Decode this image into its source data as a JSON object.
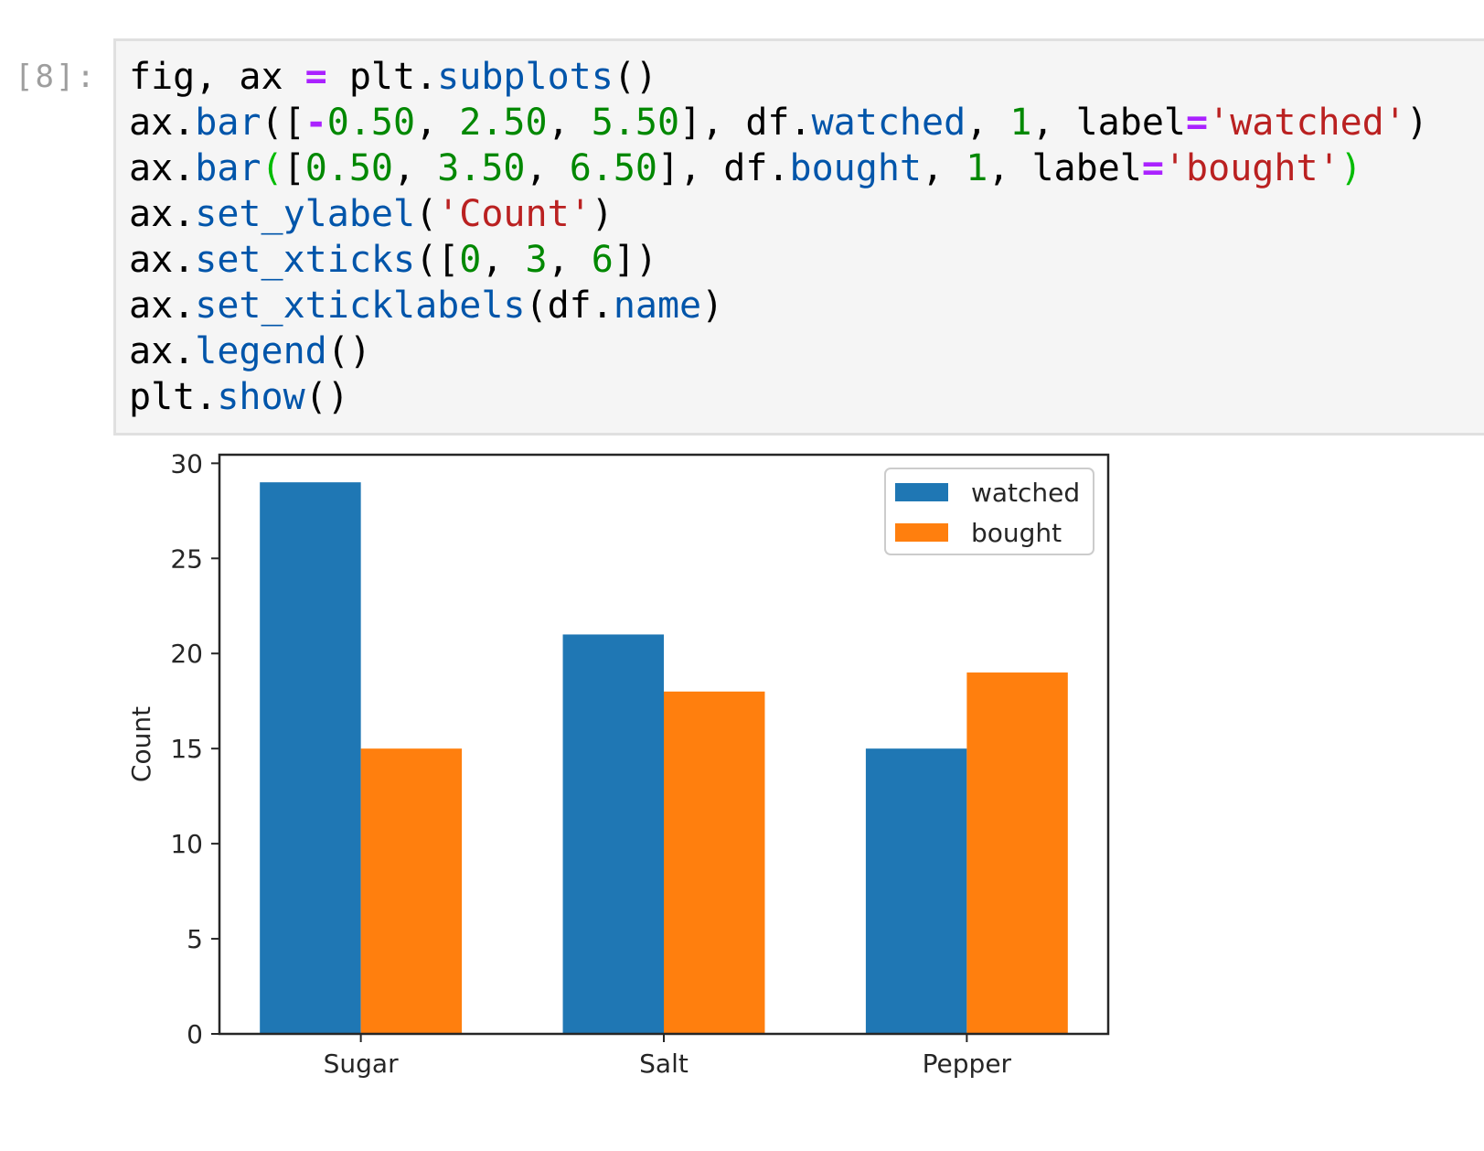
{
  "cell": {
    "prompt": "[8]:",
    "code_lines": [
      [
        [
          "fig, ax ",
          ""
        ],
        [
          "=",
          "op"
        ],
        [
          " plt.",
          ""
        ],
        [
          "subplots",
          "attr"
        ],
        [
          "()",
          ""
        ]
      ],
      [
        [
          "ax.",
          ""
        ],
        [
          "bar",
          "attr"
        ],
        [
          "([",
          ""
        ],
        [
          "-",
          "op"
        ],
        [
          "0.50",
          "num"
        ],
        [
          ", ",
          ""
        ],
        [
          "2.50",
          "num"
        ],
        [
          ", ",
          ""
        ],
        [
          "5.50",
          "num"
        ],
        [
          "], df.",
          ""
        ],
        [
          "watched",
          "attr"
        ],
        [
          ", ",
          ""
        ],
        [
          "1",
          "num"
        ],
        [
          ", label",
          ""
        ],
        [
          "=",
          "op"
        ],
        [
          "'watched'",
          "str"
        ],
        [
          ")",
          ""
        ]
      ],
      [
        [
          "ax.",
          ""
        ],
        [
          "bar",
          "attr"
        ],
        [
          "(",
          "pg"
        ],
        [
          "[",
          ""
        ],
        [
          "0.50",
          "num"
        ],
        [
          ", ",
          ""
        ],
        [
          "3.50",
          "num"
        ],
        [
          ", ",
          ""
        ],
        [
          "6.50",
          "num"
        ],
        [
          "], df.",
          ""
        ],
        [
          "bought",
          "attr"
        ],
        [
          ", ",
          ""
        ],
        [
          "1",
          "num"
        ],
        [
          ", label",
          ""
        ],
        [
          "=",
          "op"
        ],
        [
          "'bought'",
          "str"
        ],
        [
          ")",
          "pg"
        ]
      ],
      [
        [
          "ax.",
          ""
        ],
        [
          "set_ylabel",
          "attr"
        ],
        [
          "(",
          ""
        ],
        [
          "'Count'",
          "str"
        ],
        [
          ")",
          ""
        ]
      ],
      [
        [
          "ax.",
          ""
        ],
        [
          "set_xticks",
          "attr"
        ],
        [
          "([",
          ""
        ],
        [
          "0",
          "num"
        ],
        [
          ", ",
          ""
        ],
        [
          "3",
          "num"
        ],
        [
          ", ",
          ""
        ],
        [
          "6",
          "num"
        ],
        [
          "])",
          ""
        ]
      ],
      [
        [
          "ax.",
          ""
        ],
        [
          "set_xticklabels",
          "attr"
        ],
        [
          "(df.",
          ""
        ],
        [
          "name",
          "attr"
        ],
        [
          ")",
          ""
        ]
      ],
      [
        [
          "ax.",
          ""
        ],
        [
          "legend",
          "attr"
        ],
        [
          "()",
          ""
        ]
      ],
      [
        [
          "plt.",
          ""
        ],
        [
          "show",
          "attr"
        ],
        [
          "()",
          ""
        ]
      ]
    ]
  },
  "colors": {
    "watched": "#1f77b4",
    "bought": "#ff7f0e",
    "axis": "#262626"
  },
  "chart_data": {
    "type": "bar",
    "title": "",
    "xlabel": "",
    "ylabel": "Count",
    "categories": [
      "Sugar",
      "Salt",
      "Pepper"
    ],
    "xticks": [
      0,
      3,
      6
    ],
    "series": [
      {
        "name": "watched",
        "x": [
          -0.5,
          2.5,
          5.5
        ],
        "values": [
          29,
          21,
          15
        ],
        "width": 1
      },
      {
        "name": "bought",
        "x": [
          0.5,
          3.5,
          6.5
        ],
        "values": [
          15,
          18,
          19
        ],
        "width": 1
      }
    ],
    "xlim": [
      -1.4,
      7.4
    ],
    "ylim": [
      0,
      30.45
    ],
    "yticks": [
      0,
      5,
      10,
      15,
      20,
      25,
      30
    ],
    "legend_position": "top-right",
    "grid": false
  }
}
